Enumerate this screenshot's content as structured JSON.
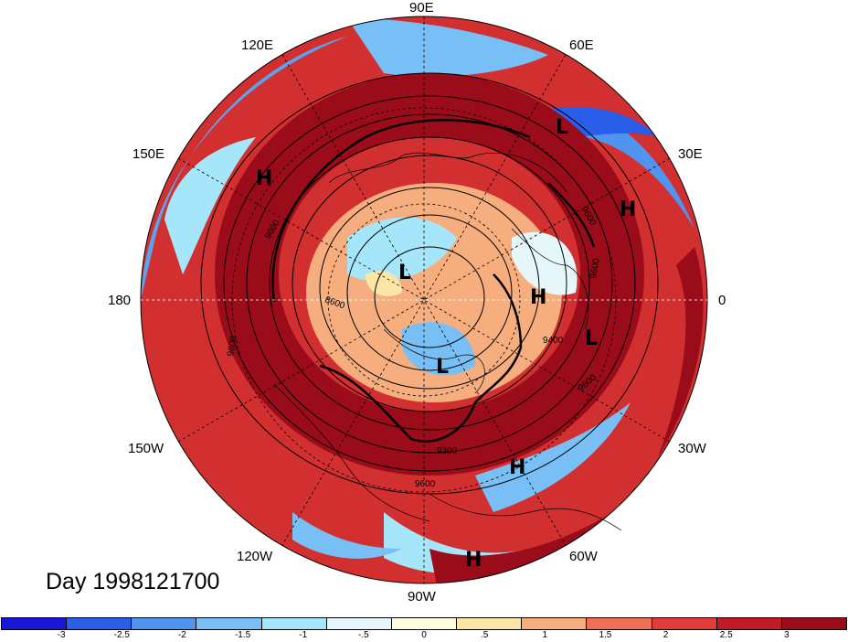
{
  "title": "Day 1998121700",
  "longitude_labels": {
    "top": "90E",
    "upper_left": "120E",
    "upper_right": "60E",
    "left_upper": "150E",
    "right_upper": "30E",
    "left": "180",
    "right": "0",
    "left_lower": "150W",
    "right_lower": "30W",
    "lower_left": "120W",
    "lower_right": "60W",
    "bottom": "90W"
  },
  "pressure_centers": [
    {
      "type": "H",
      "label": "H"
    },
    {
      "type": "L",
      "label": "L"
    },
    {
      "type": "H",
      "label": "H"
    },
    {
      "type": "L",
      "label": "L"
    },
    {
      "type": "H",
      "label": "H"
    },
    {
      "type": "L",
      "label": "L"
    },
    {
      "type": "L",
      "label": "L"
    },
    {
      "type": "H",
      "label": "H"
    },
    {
      "type": "H",
      "label": "H"
    }
  ],
  "contour_labels": [
    "9600",
    "8600",
    "9600",
    "9600",
    "9600",
    "9400",
    "9600",
    "9300",
    "9600"
  ],
  "colorbar": {
    "colors": [
      "#1a16d6",
      "#2a5ee8",
      "#4f95f0",
      "#78bff5",
      "#a6e6fa",
      "#e6f7fc",
      "#fefde0",
      "#fce6a6",
      "#f6ae7e",
      "#ef6e56",
      "#e23c39",
      "#c11a27",
      "#9b0c1a"
    ],
    "labels": [
      "-3",
      "-2.5",
      "-2",
      "-1.5",
      "-1",
      "-.5",
      "0",
      ".5",
      "1",
      "1.5",
      "2",
      "2.5",
      "3"
    ]
  }
}
